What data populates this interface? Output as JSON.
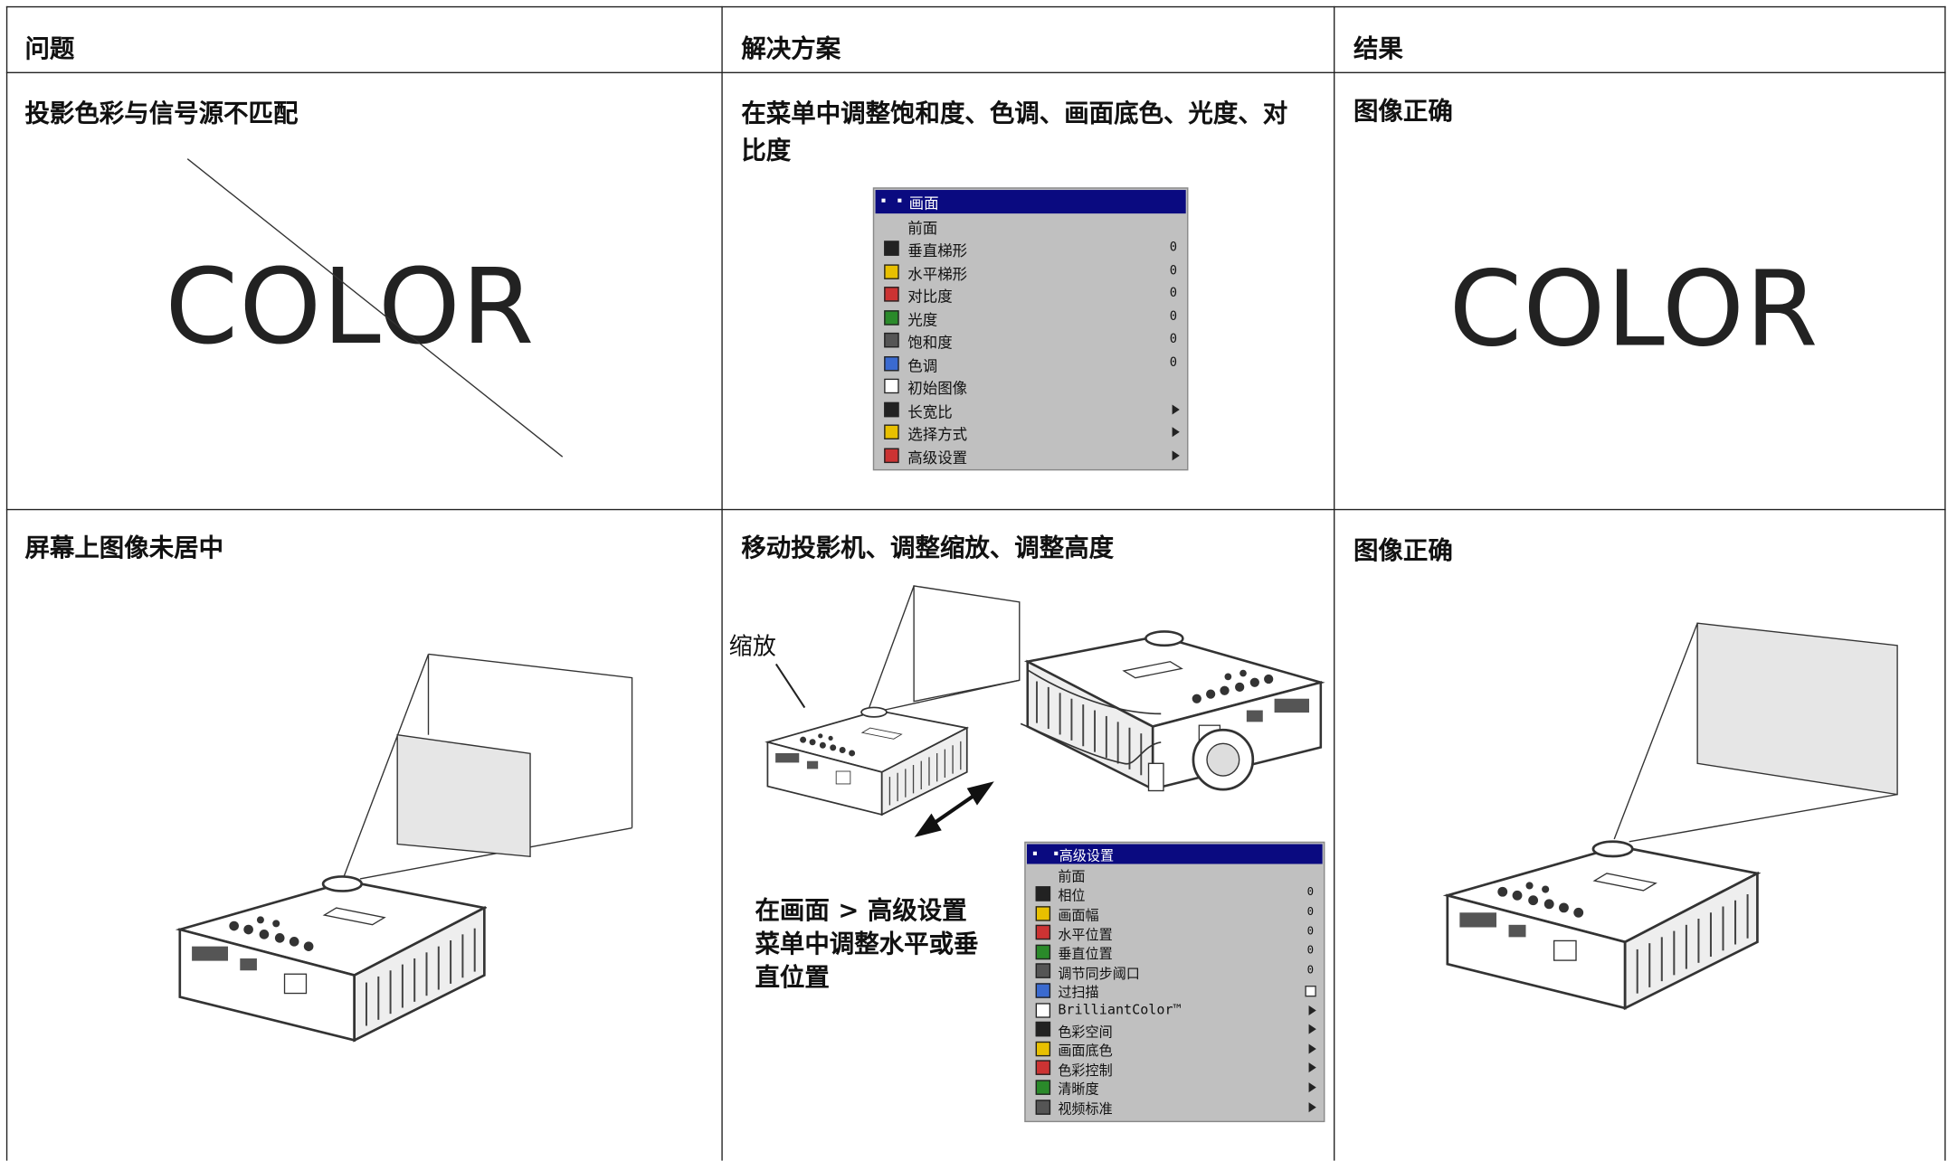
{
  "table": {
    "headers": [
      "问题",
      "解决方案",
      "结果"
    ],
    "rows": [
      {
        "problem": {
          "title": "投影色彩与信号源不匹配",
          "image_text": "COLOR"
        },
        "solution": {
          "title": "在菜单中调整饱和度、色调、画面底色、光度、对比度",
          "menu": {
            "title": "画面",
            "items": [
              {
                "label": "前面"
              },
              {
                "label": "垂直梯形",
                "value": "0"
              },
              {
                "label": "水平梯形",
                "value": "0"
              },
              {
                "label": "对比度",
                "value": "0"
              },
              {
                "label": "光度",
                "value": "0"
              },
              {
                "label": "饱和度",
                "value": "0"
              },
              {
                "label": "色调",
                "value": "0"
              },
              {
                "label": "初始图像"
              },
              {
                "label": "长宽比",
                "submenu": true
              },
              {
                "label": "选择方式",
                "submenu": true
              },
              {
                "label": "高级设置",
                "submenu": true
              }
            ]
          }
        },
        "result": {
          "title": "图像正确",
          "image_text": "COLOR"
        }
      },
      {
        "problem": {
          "title": "屏幕上图像未居中"
        },
        "solution": {
          "title": "移动投影机、调整缩放、调整高度",
          "callout": "缩放",
          "note_lines": [
            "在画面 > 高级设置",
            "菜单中调整水平或垂",
            "直位置"
          ],
          "menu": {
            "title": "高级设置",
            "items": [
              {
                "label": "前面"
              },
              {
                "label": "相位",
                "value": "0"
              },
              {
                "label": "画面幅",
                "value": "0"
              },
              {
                "label": "水平位置",
                "value": "0"
              },
              {
                "label": "垂直位置",
                "value": "0"
              },
              {
                "label": "调节同步阈口",
                "value": "0"
              },
              {
                "label": "过扫描",
                "checkbox": true
              },
              {
                "label": "BrilliantColor™",
                "submenu": true
              },
              {
                "label": "色彩空间",
                "submenu": true
              },
              {
                "label": "画面底色",
                "submenu": true
              },
              {
                "label": "色彩控制",
                "submenu": true
              },
              {
                "label": "清晰度",
                "submenu": true
              },
              {
                "label": "视频标准",
                "submenu": true
              }
            ]
          }
        },
        "result": {
          "title": "图像正确"
        }
      }
    ]
  }
}
